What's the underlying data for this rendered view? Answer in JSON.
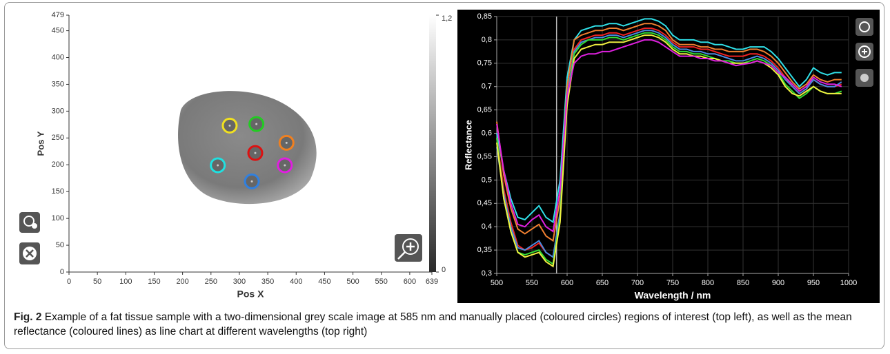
{
  "chart_data": [
    {
      "type": "scatter",
      "x_label": "Pos X",
      "y_label": "Pos Y",
      "x": [
        283,
        330,
        383,
        328,
        380,
        262,
        322
      ],
      "y": [
        273,
        276,
        241,
        222,
        199,
        199,
        169
      ],
      "colors": [
        "#f0e020",
        "#22cc22",
        "#f08020",
        "#dd1111",
        "#e020e0",
        "#20e0e0",
        "#3080e0"
      ],
      "xlim": [
        0,
        639
      ],
      "xticks": [
        0,
        50,
        100,
        150,
        200,
        250,
        300,
        350,
        400,
        450,
        500,
        550,
        600,
        639
      ],
      "ylim": [
        0,
        479
      ],
      "yticks": [
        0,
        50,
        100,
        150,
        200,
        250,
        300,
        350,
        400,
        450,
        479
      ],
      "colorbar": {
        "lim": [
          0,
          1.2
        ],
        "ticks": [
          0,
          {
            "value": 1.2,
            "label": "1,2"
          }
        ]
      }
    },
    {
      "type": "line",
      "x_label": "Wavelength / nm",
      "y_label": "Reflectance",
      "x": [
        500,
        510,
        520,
        530,
        540,
        550,
        560,
        570,
        580,
        590,
        600,
        610,
        620,
        630,
        640,
        650,
        660,
        670,
        680,
        690,
        700,
        710,
        720,
        730,
        740,
        750,
        760,
        770,
        780,
        790,
        800,
        810,
        820,
        830,
        840,
        850,
        860,
        870,
        880,
        890,
        900,
        910,
        920,
        930,
        940,
        950,
        960,
        970,
        980,
        990
      ],
      "xlim": [
        500,
        1000
      ],
      "xticks": [
        500,
        550,
        600,
        650,
        700,
        750,
        800,
        850,
        900,
        950,
        1000
      ],
      "ylim": [
        0.3,
        0.85
      ],
      "yticks": [
        {
          "value": 0.3,
          "label": "0,3"
        },
        {
          "value": 0.35,
          "label": "0,35"
        },
        {
          "value": 0.4,
          "label": "0,4"
        },
        {
          "value": 0.45,
          "label": "0,45"
        },
        {
          "value": 0.5,
          "label": "0,5"
        },
        {
          "value": 0.55,
          "label": "0,55"
        },
        {
          "value": 0.6,
          "label": "0,6"
        },
        {
          "value": 0.65,
          "label": "0,65"
        },
        {
          "value": 0.7,
          "label": "0,7"
        },
        {
          "value": 0.75,
          "label": "0,75"
        },
        {
          "value": 0.8,
          "label": "0,8"
        },
        {
          "value": 0.85,
          "label": "0,85"
        }
      ],
      "grid": true,
      "vline": 585,
      "series": [
        {
          "color": "#30e0e8",
          "values": [
            0.6,
            0.52,
            0.46,
            0.42,
            0.415,
            0.43,
            0.445,
            0.42,
            0.41,
            0.5,
            0.72,
            0.8,
            0.82,
            0.825,
            0.83,
            0.83,
            0.835,
            0.835,
            0.83,
            0.835,
            0.84,
            0.845,
            0.845,
            0.84,
            0.83,
            0.81,
            0.8,
            0.8,
            0.8,
            0.795,
            0.795,
            0.79,
            0.79,
            0.785,
            0.78,
            0.78,
            0.785,
            0.785,
            0.785,
            0.775,
            0.76,
            0.74,
            0.72,
            0.7,
            0.715,
            0.74,
            0.73,
            0.725,
            0.73,
            0.73
          ]
        },
        {
          "color": "#f08030",
          "values": [
            0.625,
            0.51,
            0.44,
            0.395,
            0.385,
            0.395,
            0.405,
            0.38,
            0.37,
            0.46,
            0.7,
            0.8,
            0.81,
            0.815,
            0.82,
            0.82,
            0.825,
            0.825,
            0.82,
            0.825,
            0.83,
            0.835,
            0.835,
            0.83,
            0.82,
            0.8,
            0.79,
            0.79,
            0.79,
            0.785,
            0.785,
            0.78,
            0.78,
            0.775,
            0.775,
            0.775,
            0.78,
            0.78,
            0.775,
            0.765,
            0.75,
            0.73,
            0.71,
            0.695,
            0.705,
            0.725,
            0.715,
            0.71,
            0.715,
            0.715
          ]
        },
        {
          "color": "#ee2222",
          "values": [
            0.59,
            0.48,
            0.41,
            0.36,
            0.35,
            0.355,
            0.365,
            0.345,
            0.335,
            0.43,
            0.68,
            0.78,
            0.8,
            0.805,
            0.81,
            0.81,
            0.815,
            0.815,
            0.81,
            0.815,
            0.82,
            0.825,
            0.825,
            0.82,
            0.81,
            0.795,
            0.785,
            0.785,
            0.785,
            0.78,
            0.78,
            0.775,
            0.77,
            0.765,
            0.765,
            0.765,
            0.77,
            0.77,
            0.765,
            0.755,
            0.74,
            0.72,
            0.7,
            0.685,
            0.695,
            0.715,
            0.705,
            0.7,
            0.7,
            0.705
          ]
        },
        {
          "color": "#4a8ae0",
          "values": [
            0.57,
            0.47,
            0.4,
            0.355,
            0.35,
            0.36,
            0.37,
            0.345,
            0.335,
            0.43,
            0.68,
            0.775,
            0.795,
            0.8,
            0.805,
            0.805,
            0.81,
            0.81,
            0.805,
            0.81,
            0.815,
            0.82,
            0.82,
            0.815,
            0.805,
            0.79,
            0.78,
            0.78,
            0.775,
            0.775,
            0.77,
            0.77,
            0.765,
            0.76,
            0.755,
            0.755,
            0.76,
            0.765,
            0.76,
            0.75,
            0.735,
            0.715,
            0.7,
            0.685,
            0.695,
            0.715,
            0.705,
            0.7,
            0.7,
            0.71
          ]
        },
        {
          "color": "#33dd33",
          "values": [
            0.59,
            0.46,
            0.39,
            0.345,
            0.34,
            0.345,
            0.35,
            0.33,
            0.32,
            0.42,
            0.67,
            0.77,
            0.79,
            0.8,
            0.8,
            0.8,
            0.805,
            0.805,
            0.8,
            0.805,
            0.81,
            0.815,
            0.815,
            0.81,
            0.8,
            0.785,
            0.775,
            0.775,
            0.77,
            0.77,
            0.765,
            0.76,
            0.755,
            0.755,
            0.75,
            0.75,
            0.755,
            0.76,
            0.755,
            0.745,
            0.73,
            0.705,
            0.69,
            0.675,
            0.685,
            0.7,
            0.69,
            0.685,
            0.685,
            0.69
          ]
        },
        {
          "color": "#f0f040",
          "values": [
            0.58,
            0.46,
            0.39,
            0.345,
            0.335,
            0.34,
            0.345,
            0.325,
            0.315,
            0.41,
            0.66,
            0.76,
            0.78,
            0.785,
            0.79,
            0.79,
            0.795,
            0.795,
            0.795,
            0.8,
            0.805,
            0.81,
            0.81,
            0.805,
            0.795,
            0.78,
            0.77,
            0.77,
            0.765,
            0.765,
            0.76,
            0.76,
            0.755,
            0.75,
            0.75,
            0.75,
            0.75,
            0.755,
            0.75,
            0.74,
            0.725,
            0.7,
            0.685,
            0.68,
            0.69,
            0.7,
            0.69,
            0.685,
            0.685,
            0.685
          ]
        },
        {
          "color": "#e020e0",
          "values": [
            0.62,
            0.52,
            0.45,
            0.405,
            0.4,
            0.415,
            0.425,
            0.4,
            0.39,
            0.48,
            0.68,
            0.75,
            0.765,
            0.77,
            0.77,
            0.775,
            0.775,
            0.78,
            0.785,
            0.79,
            0.795,
            0.8,
            0.8,
            0.795,
            0.785,
            0.775,
            0.765,
            0.765,
            0.765,
            0.76,
            0.76,
            0.755,
            0.755,
            0.75,
            0.745,
            0.748,
            0.75,
            0.755,
            0.75,
            0.745,
            0.73,
            0.72,
            0.705,
            0.69,
            0.7,
            0.72,
            0.71,
            0.705,
            0.705,
            0.7
          ]
        }
      ]
    }
  ],
  "caption": {
    "label": "Fig. 2",
    "text": "Example of a fat tissue sample with a two-dimensional grey scale image at 585 nm and manually placed (coloured circles) regions of interest (top left), as well as the mean reflectance (coloured lines) as line chart at different wavelengths (top right)"
  }
}
